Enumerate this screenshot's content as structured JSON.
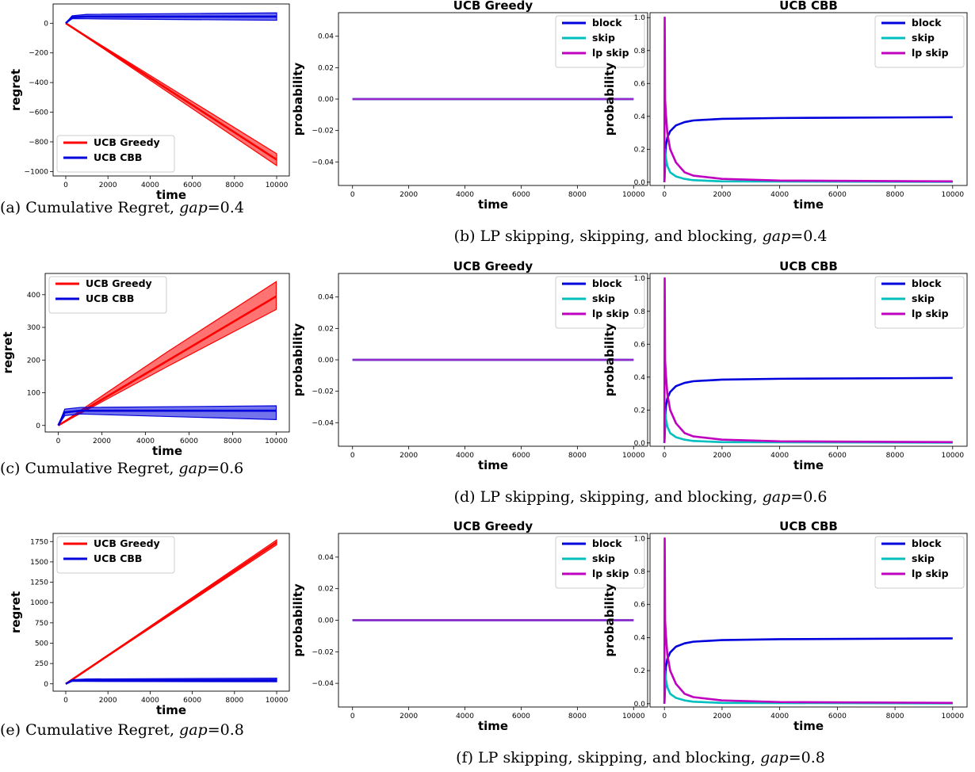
{
  "colors": {
    "greedy": "#ff0000",
    "cbb": "#0000dd",
    "block": "#0000dd",
    "skip": "#00bfbf",
    "lpskip": "#bf00bf",
    "flat": "#9a27c9"
  },
  "captions": {
    "a": {
      "prefix": "(a) Cumulative Regret, ",
      "var": "gap",
      "value": "=0.4"
    },
    "b": {
      "prefix": "(b) LP skipping, skipping, and blocking, ",
      "var": "gap",
      "value": "=0.4"
    },
    "c": {
      "prefix": "(c) Cumulative Regret, ",
      "var": "gap",
      "value": "=0.6"
    },
    "d": {
      "prefix": "(d) LP skipping, skipping, and blocking, ",
      "var": "gap",
      "value": "=0.6"
    },
    "e": {
      "prefix": "(e) Cumulative Regret, ",
      "var": "gap",
      "value": "=0.8"
    },
    "f": {
      "prefix": "(f) LP skipping, skipping, and blocking, ",
      "var": "gap",
      "value": "=0.8"
    }
  },
  "chart_data": [
    {
      "id": "a",
      "type": "line",
      "title": "",
      "xlabel": "time",
      "ylabel": "regret",
      "xlim": [
        -600,
        10600
      ],
      "ylim": [
        -1030,
        130
      ],
      "xticks": [
        0,
        2000,
        4000,
        6000,
        8000,
        10000
      ],
      "yticks": [
        -1000,
        -800,
        -600,
        -400,
        -200,
        0
      ],
      "legend": "lower-left",
      "series": [
        {
          "name": "UCB Greedy",
          "color_key": "greedy",
          "x": [
            0,
            10000
          ],
          "y": [
            0,
            -920
          ],
          "band": [
            [
              0,
              0,
              0
            ],
            [
              10000,
              -960,
              -880
            ]
          ]
        },
        {
          "name": "UCB CBB",
          "color_key": "cbb",
          "x": [
            0,
            300,
            1000,
            10000
          ],
          "y": [
            0,
            40,
            45,
            45
          ],
          "band": [
            [
              0,
              0,
              0
            ],
            [
              300,
              30,
              50
            ],
            [
              1000,
              30,
              60
            ],
            [
              10000,
              20,
              70
            ]
          ]
        }
      ]
    },
    {
      "id": "b1",
      "type": "line",
      "title": "UCB Greedy",
      "xlabel": "time",
      "ylabel": "probability",
      "xlim": [
        -500,
        10500
      ],
      "ylim": [
        -0.055,
        0.055
      ],
      "xticks": [
        0,
        2000,
        4000,
        6000,
        8000,
        10000
      ],
      "yticks": [
        -0.04,
        -0.02,
        0.0,
        0.02,
        0.04
      ],
      "legend": "upper-right",
      "series": [
        {
          "name": "block",
          "color_key": "block",
          "x": [
            0,
            10000
          ],
          "y": [
            0,
            0
          ]
        },
        {
          "name": "skip",
          "color_key": "skip",
          "x": [
            0,
            10000
          ],
          "y": [
            0,
            0
          ]
        },
        {
          "name": "lp skip",
          "color_key": "lpskip",
          "x": [
            0,
            10000
          ],
          "y": [
            0,
            0
          ]
        }
      ]
    },
    {
      "id": "b2",
      "type": "line",
      "title": "UCB CBB",
      "xlabel": "time",
      "ylabel": "probability",
      "xlim": [
        -500,
        10500
      ],
      "ylim": [
        -0.02,
        1.03
      ],
      "xticks": [
        0,
        2000,
        4000,
        6000,
        8000,
        10000
      ],
      "yticks": [
        0.0,
        0.2,
        0.4,
        0.6,
        0.8,
        1.0
      ],
      "legend": "upper-right",
      "series": [
        {
          "name": "block",
          "color_key": "block",
          "x": [
            0,
            50,
            100,
            200,
            400,
            700,
            1000,
            2000,
            4000,
            10000
          ],
          "y": [
            0,
            0.22,
            0.27,
            0.31,
            0.345,
            0.365,
            0.375,
            0.385,
            0.39,
            0.395
          ]
        },
        {
          "name": "skip",
          "color_key": "skip",
          "x": [
            0,
            20,
            50,
            100,
            200,
            400,
            700,
            1000,
            2000,
            10000
          ],
          "y": [
            0,
            0.2,
            0.15,
            0.1,
            0.06,
            0.035,
            0.02,
            0.012,
            0.005,
            0.002
          ]
        },
        {
          "name": "lp skip",
          "color_key": "lpskip",
          "x": [
            0,
            10,
            25,
            50,
            100,
            200,
            400,
            700,
            1000,
            2000,
            4000,
            10000
          ],
          "y": [
            0,
            1.0,
            0.5,
            0.42,
            0.3,
            0.2,
            0.12,
            0.06,
            0.04,
            0.02,
            0.01,
            0.005
          ]
        }
      ]
    },
    {
      "id": "c",
      "type": "line",
      "title": "",
      "xlabel": "time",
      "ylabel": "regret",
      "xlim": [
        -600,
        10600
      ],
      "ylim": [
        -20,
        465
      ],
      "xticks": [
        0,
        2000,
        4000,
        6000,
        8000,
        10000
      ],
      "yticks": [
        0,
        100,
        200,
        300,
        400
      ],
      "legend": "upper-left",
      "series": [
        {
          "name": "UCB Greedy",
          "color_key": "greedy",
          "x": [
            0,
            10000
          ],
          "y": [
            0,
            395
          ],
          "band": [
            [
              0,
              0,
              0
            ],
            [
              5000,
              180,
              225
            ],
            [
              10000,
              355,
              440
            ]
          ]
        },
        {
          "name": "UCB CBB",
          "color_key": "cbb",
          "x": [
            0,
            300,
            1000,
            10000
          ],
          "y": [
            0,
            40,
            45,
            45
          ],
          "band": [
            [
              0,
              0,
              0
            ],
            [
              300,
              30,
              50
            ],
            [
              1000,
              35,
              55
            ],
            [
              10000,
              18,
              60
            ]
          ]
        }
      ]
    },
    {
      "id": "d1",
      "type": "line",
      "title": "UCB Greedy",
      "xlabel": "time",
      "ylabel": "probability",
      "xlim": [
        -500,
        10500
      ],
      "ylim": [
        -0.055,
        0.055
      ],
      "xticks": [
        0,
        2000,
        4000,
        6000,
        8000,
        10000
      ],
      "yticks": [
        -0.04,
        -0.02,
        0.0,
        0.02,
        0.04
      ],
      "legend": "upper-right",
      "series": [
        {
          "name": "block",
          "color_key": "block",
          "x": [
            0,
            10000
          ],
          "y": [
            0,
            0
          ]
        },
        {
          "name": "skip",
          "color_key": "skip",
          "x": [
            0,
            10000
          ],
          "y": [
            0,
            0
          ]
        },
        {
          "name": "lp skip",
          "color_key": "lpskip",
          "x": [
            0,
            10000
          ],
          "y": [
            0,
            0
          ]
        }
      ]
    },
    {
      "id": "d2",
      "type": "line",
      "title": "UCB CBB",
      "xlabel": "time",
      "ylabel": "probability",
      "xlim": [
        -500,
        10500
      ],
      "ylim": [
        -0.02,
        1.03
      ],
      "xticks": [
        0,
        2000,
        4000,
        6000,
        8000,
        10000
      ],
      "yticks": [
        0.0,
        0.2,
        0.4,
        0.6,
        0.8,
        1.0
      ],
      "legend": "upper-right",
      "series": [
        {
          "name": "block",
          "color_key": "block",
          "x": [
            0,
            50,
            100,
            200,
            400,
            700,
            1000,
            2000,
            4000,
            10000
          ],
          "y": [
            0,
            0.22,
            0.27,
            0.31,
            0.345,
            0.365,
            0.375,
            0.385,
            0.39,
            0.395
          ]
        },
        {
          "name": "skip",
          "color_key": "skip",
          "x": [
            0,
            20,
            50,
            100,
            200,
            400,
            700,
            1000,
            2000,
            10000
          ],
          "y": [
            0,
            0.2,
            0.15,
            0.1,
            0.06,
            0.035,
            0.02,
            0.012,
            0.005,
            0.002
          ]
        },
        {
          "name": "lp skip",
          "color_key": "lpskip",
          "x": [
            0,
            10,
            25,
            50,
            100,
            200,
            400,
            700,
            1000,
            2000,
            4000,
            10000
          ],
          "y": [
            0,
            1.0,
            0.5,
            0.42,
            0.3,
            0.2,
            0.12,
            0.06,
            0.04,
            0.02,
            0.01,
            0.005
          ]
        }
      ]
    },
    {
      "id": "e",
      "type": "line",
      "title": "",
      "xlabel": "time",
      "ylabel": "regret",
      "xlim": [
        -600,
        10600
      ],
      "ylim": [
        -90,
        1850
      ],
      "xticks": [
        0,
        2000,
        4000,
        6000,
        8000,
        10000
      ],
      "yticks": [
        0,
        250,
        500,
        750,
        1000,
        1250,
        1500,
        1750
      ],
      "legend": "upper-left",
      "series": [
        {
          "name": "UCB Greedy",
          "color_key": "greedy",
          "x": [
            0,
            10000
          ],
          "y": [
            0,
            1740
          ],
          "band": [
            [
              0,
              0,
              0
            ],
            [
              10000,
              1710,
              1770
            ]
          ]
        },
        {
          "name": "UCB CBB",
          "color_key": "cbb",
          "x": [
            0,
            300,
            1000,
            10000
          ],
          "y": [
            0,
            40,
            45,
            45
          ],
          "band": [
            [
              0,
              0,
              0
            ],
            [
              300,
              30,
              50
            ],
            [
              1000,
              30,
              60
            ],
            [
              10000,
              25,
              70
            ]
          ]
        }
      ]
    },
    {
      "id": "f1",
      "type": "line",
      "title": "UCB Greedy",
      "xlabel": "time",
      "ylabel": "probability",
      "xlim": [
        -500,
        10500
      ],
      "ylim": [
        -0.055,
        0.055
      ],
      "xticks": [
        0,
        2000,
        4000,
        6000,
        8000,
        10000
      ],
      "yticks": [
        -0.04,
        -0.02,
        0.0,
        0.02,
        0.04
      ],
      "legend": "upper-right",
      "series": [
        {
          "name": "block",
          "color_key": "block",
          "x": [
            0,
            10000
          ],
          "y": [
            0,
            0
          ]
        },
        {
          "name": "skip",
          "color_key": "skip",
          "x": [
            0,
            10000
          ],
          "y": [
            0,
            0
          ]
        },
        {
          "name": "lp skip",
          "color_key": "lpskip",
          "x": [
            0,
            10000
          ],
          "y": [
            0,
            0
          ]
        }
      ]
    },
    {
      "id": "f2",
      "type": "line",
      "title": "UCB CBB",
      "xlabel": "time",
      "ylabel": "probability",
      "xlim": [
        -500,
        10500
      ],
      "ylim": [
        -0.02,
        1.03
      ],
      "xticks": [
        0,
        2000,
        4000,
        6000,
        8000,
        10000
      ],
      "yticks": [
        0.0,
        0.2,
        0.4,
        0.6,
        0.8,
        1.0
      ],
      "legend": "upper-right",
      "series": [
        {
          "name": "block",
          "color_key": "block",
          "x": [
            0,
            50,
            100,
            200,
            400,
            700,
            1000,
            2000,
            4000,
            10000
          ],
          "y": [
            0,
            0.22,
            0.27,
            0.31,
            0.345,
            0.365,
            0.375,
            0.385,
            0.39,
            0.395
          ]
        },
        {
          "name": "skip",
          "color_key": "skip",
          "x": [
            0,
            20,
            50,
            100,
            200,
            400,
            700,
            1000,
            2000,
            10000
          ],
          "y": [
            0,
            0.2,
            0.15,
            0.1,
            0.06,
            0.035,
            0.02,
            0.012,
            0.005,
            0.002
          ]
        },
        {
          "name": "lp skip",
          "color_key": "lpskip",
          "x": [
            0,
            10,
            25,
            50,
            100,
            200,
            400,
            700,
            1000,
            2000,
            4000,
            10000
          ],
          "y": [
            0,
            1.0,
            0.5,
            0.42,
            0.3,
            0.2,
            0.12,
            0.06,
            0.04,
            0.02,
            0.01,
            0.005
          ]
        }
      ]
    }
  ]
}
